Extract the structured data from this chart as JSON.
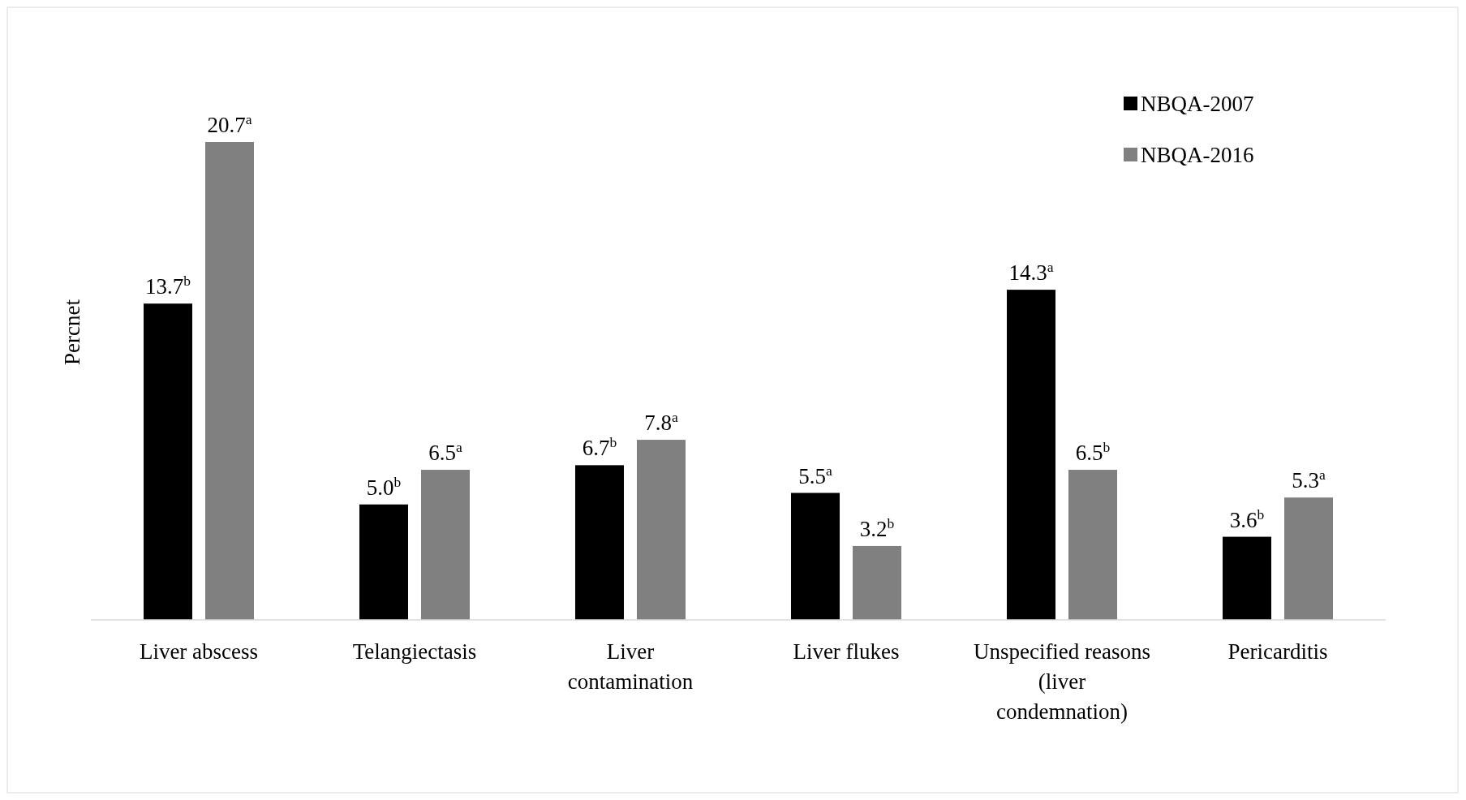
{
  "chart_data": {
    "type": "bar",
    "ylabel": "Percnet",
    "legend": "top right",
    "categories": [
      "Liver abscess",
      "Telangiectasis",
      "Liver\ncontamination",
      "Liver flukes",
      "Unspecified reasons\n(liver\ncondemnation)",
      "Pericarditis"
    ],
    "series": [
      {
        "name": "NBQA-2007",
        "color": "#000000",
        "values": [
          13.7,
          5.0,
          6.7,
          5.5,
          14.3,
          3.6
        ],
        "value_labels": [
          "13.7$^{b}$",
          "5.0$^{b}$",
          "6.7$^{b}$",
          "5.5$^{a}$",
          "14.3$^{a}$",
          "3.6$^{b}$"
        ]
      },
      {
        "name": "NBQA-2016",
        "color": "#808080",
        "values": [
          20.7,
          6.5,
          7.8,
          3.2,
          6.5,
          5.3
        ],
        "value_labels": [
          "20.7$^{a}$",
          "6.5$^{a}$",
          "7.8$^{a}$",
          "3.2$^{b}$",
          "6.5$^{b}$",
          "5.3$^{a}$"
        ]
      }
    ]
  }
}
